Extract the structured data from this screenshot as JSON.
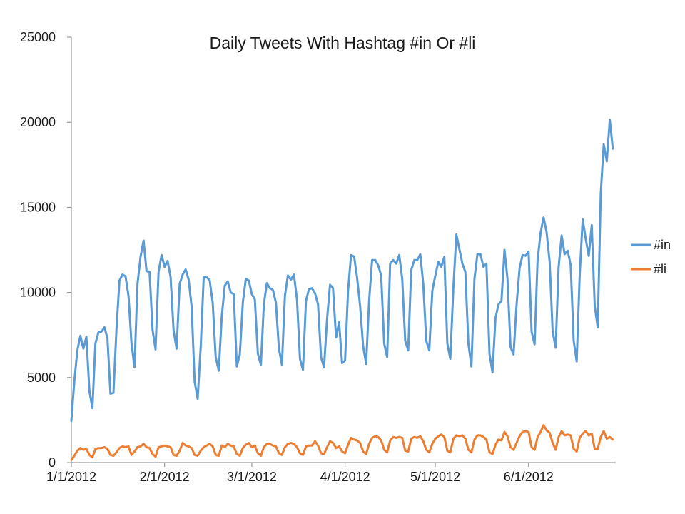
{
  "chart_data": {
    "type": "line",
    "title": "Daily Tweets With Hashtag #in Or #li",
    "xlabel": "",
    "ylabel": "",
    "x_start": "1/1/2012",
    "x_end": "6/30/2012",
    "ylim": [
      0,
      25000
    ],
    "y_ticks": [
      "0",
      "5000",
      "10000",
      "15000",
      "20000",
      "25000"
    ],
    "x_tick_dates": [
      "1/1/2012",
      "2/1/2012",
      "3/1/2012",
      "4/1/2012",
      "5/1/2012",
      "6/1/2012"
    ],
    "grid": false,
    "legend_position": "right",
    "series": [
      {
        "name": "#in",
        "color": "#5b9bd5",
        "values": [
          2450,
          4800,
          6600,
          7450,
          6700,
          7400,
          4200,
          3200,
          7000,
          7650,
          7700,
          7950,
          7300,
          4050,
          4100,
          7800,
          10700,
          11050,
          10950,
          9800,
          7000,
          5600,
          10500,
          12100,
          13050,
          11250,
          11200,
          7800,
          6650,
          11200,
          12200,
          11500,
          11850,
          10900,
          7750,
          6700,
          10500,
          11050,
          11350,
          10750,
          9150,
          4750,
          3750,
          6800,
          10900,
          10900,
          10700,
          9400,
          6200,
          5400,
          8600,
          10400,
          10650,
          10000,
          9900,
          5650,
          6350,
          9400,
          10800,
          10700,
          9900,
          9600,
          6400,
          5750,
          9300,
          10550,
          10250,
          10150,
          9400,
          6700,
          5750,
          9800,
          11000,
          10750,
          11050,
          9600,
          6100,
          5450,
          9500,
          10200,
          10250,
          9950,
          9300,
          6200,
          5600,
          8400,
          10450,
          10250,
          7350,
          8250,
          5850,
          6000,
          10100,
          12200,
          12100,
          10850,
          9200,
          6850,
          5800,
          9500,
          11900,
          11900,
          11600,
          11000,
          7000,
          6200,
          11700,
          11900,
          11700,
          12200,
          10800,
          7150,
          6600,
          11300,
          11900,
          11900,
          12250,
          10500,
          7150,
          6600,
          10100,
          11000,
          11800,
          11500,
          12100,
          7000,
          6100,
          10300,
          13400,
          12550,
          11700,
          11200,
          7000,
          5650,
          10800,
          12250,
          12250,
          11500,
          11700,
          6400,
          5300,
          8500,
          9300,
          9500,
          12500,
          10800,
          6800,
          6350,
          9250,
          11400,
          12200,
          12150,
          12400,
          7700,
          6950,
          11900,
          13500,
          14400,
          13550,
          11800,
          7700,
          6750,
          11500,
          13350,
          12250,
          12450,
          11600,
          7150,
          5950,
          11000,
          14300,
          13150,
          12150,
          13950,
          9200,
          7950,
          15800,
          18700,
          17700,
          20150,
          18450
        ]
      },
      {
        "name": "#li",
        "color": "#ed7d31",
        "values": [
          150,
          400,
          700,
          850,
          750,
          800,
          450,
          300,
          800,
          850,
          850,
          900,
          800,
          450,
          400,
          600,
          850,
          950,
          900,
          950,
          450,
          650,
          900,
          950,
          1100,
          900,
          850,
          500,
          350,
          900,
          950,
          1000,
          950,
          900,
          450,
          400,
          700,
          1150,
          1000,
          950,
          850,
          450,
          400,
          700,
          900,
          1000,
          1100,
          950,
          450,
          400,
          1000,
          900,
          1100,
          1000,
          950,
          500,
          400,
          850,
          1050,
          1150,
          900,
          1000,
          550,
          400,
          900,
          1100,
          1100,
          1000,
          950,
          550,
          450,
          900,
          1100,
          1150,
          1100,
          900,
          550,
          450,
          950,
          1000,
          1000,
          1250,
          1000,
          550,
          500,
          900,
          1250,
          1150,
          850,
          950,
          650,
          550,
          1050,
          1450,
          1350,
          1300,
          1150,
          650,
          500,
          1100,
          1450,
          1550,
          1500,
          1300,
          750,
          600,
          1300,
          1500,
          1450,
          1500,
          1450,
          700,
          650,
          1400,
          1500,
          1450,
          1550,
          1250,
          750,
          600,
          1100,
          1400,
          1550,
          1650,
          1500,
          700,
          600,
          1400,
          1600,
          1550,
          1600,
          1400,
          750,
          600,
          1350,
          1600,
          1600,
          1500,
          1350,
          600,
          500,
          1050,
          1350,
          1300,
          1800,
          1550,
          900,
          750,
          1150,
          1550,
          1800,
          1850,
          1800,
          900,
          750,
          1500,
          1800,
          2200,
          1900,
          1750,
          1150,
          750,
          1500,
          1850,
          1600,
          1650,
          1600,
          800,
          650,
          1450,
          1700,
          1850,
          1600,
          1700,
          800,
          800,
          1500,
          1850,
          1400,
          1500,
          1350
        ]
      }
    ]
  }
}
